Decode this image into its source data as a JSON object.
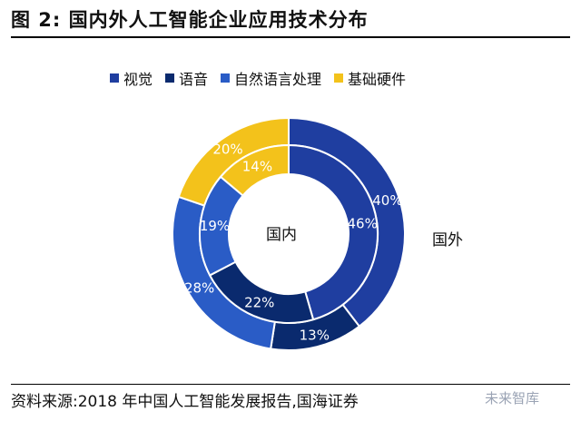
{
  "figure": {
    "title": "图 2:  国内外人工智能企业应用技术分布",
    "source": "资料来源:2018 年中国人工智能发展报告,国海证券",
    "watermark": "未来智库"
  },
  "chart_data": {
    "type": "pie",
    "subtype": "nested-donut",
    "categories": [
      "视觉",
      "语音",
      "自然语言处理",
      "基础硬件"
    ],
    "colors": [
      "#1f3ea0",
      "#0a2a6e",
      "#2a5cc6",
      "#f3c21b"
    ],
    "legend_position": "top",
    "series": [
      {
        "name": "国外",
        "ring": "outer",
        "values": [
          40,
          13,
          28,
          20
        ],
        "labels": [
          "40%",
          "13%",
          "28%",
          "20%"
        ]
      },
      {
        "name": "国内",
        "ring": "inner",
        "values": [
          46,
          22,
          19,
          14
        ],
        "labels": [
          "46%",
          "22%",
          "19%",
          "14%"
        ]
      }
    ]
  }
}
